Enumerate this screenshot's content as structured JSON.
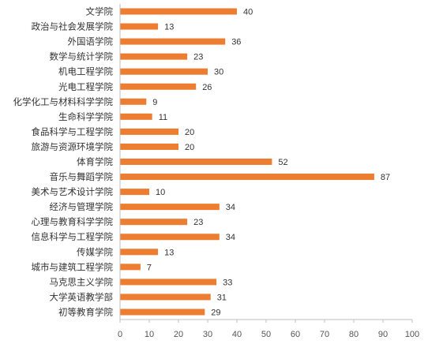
{
  "chart_data": {
    "type": "bar",
    "orientation": "horizontal",
    "title": "",
    "xlabel": "",
    "ylabel": "",
    "categories": [
      "文学院",
      "政治与社会发展学院",
      "外国语学院",
      "数学与统计学院",
      "机电工程学院",
      "光电工程学院",
      "化学化工与材料科学学院",
      "生命科学学院",
      "食品科学与工程学院",
      "旅游与资源环境学院",
      "体育学院",
      "音乐与舞蹈学院",
      "美术与艺术设计学院",
      "经济与管理学院",
      "心理与教育科学学院",
      "信息科学与工程学院",
      "传媒学院",
      "城市与建筑工程学院",
      "马克思主义学院",
      "大学英语教学部",
      "初等教育学院"
    ],
    "values": [
      40,
      13,
      36,
      23,
      30,
      26,
      9,
      11,
      20,
      20,
      52,
      87,
      10,
      34,
      23,
      34,
      13,
      7,
      33,
      31,
      29
    ],
    "data_labels": [
      "40",
      "13",
      "36",
      "23",
      "30",
      "26",
      "9",
      "11",
      "20",
      "20",
      "52",
      "87",
      "10",
      "34",
      "23",
      "34",
      "13",
      "7",
      "33",
      "31",
      "29"
    ],
    "xlim": [
      0,
      100
    ],
    "xticks": [
      "0",
      "10",
      "20",
      "30",
      "40",
      "50",
      "60",
      "70",
      "80",
      "90",
      "100"
    ],
    "bar_color": "#ED7D31",
    "axis_color": "#BFBFBF",
    "grid": false,
    "legend": "none"
  }
}
